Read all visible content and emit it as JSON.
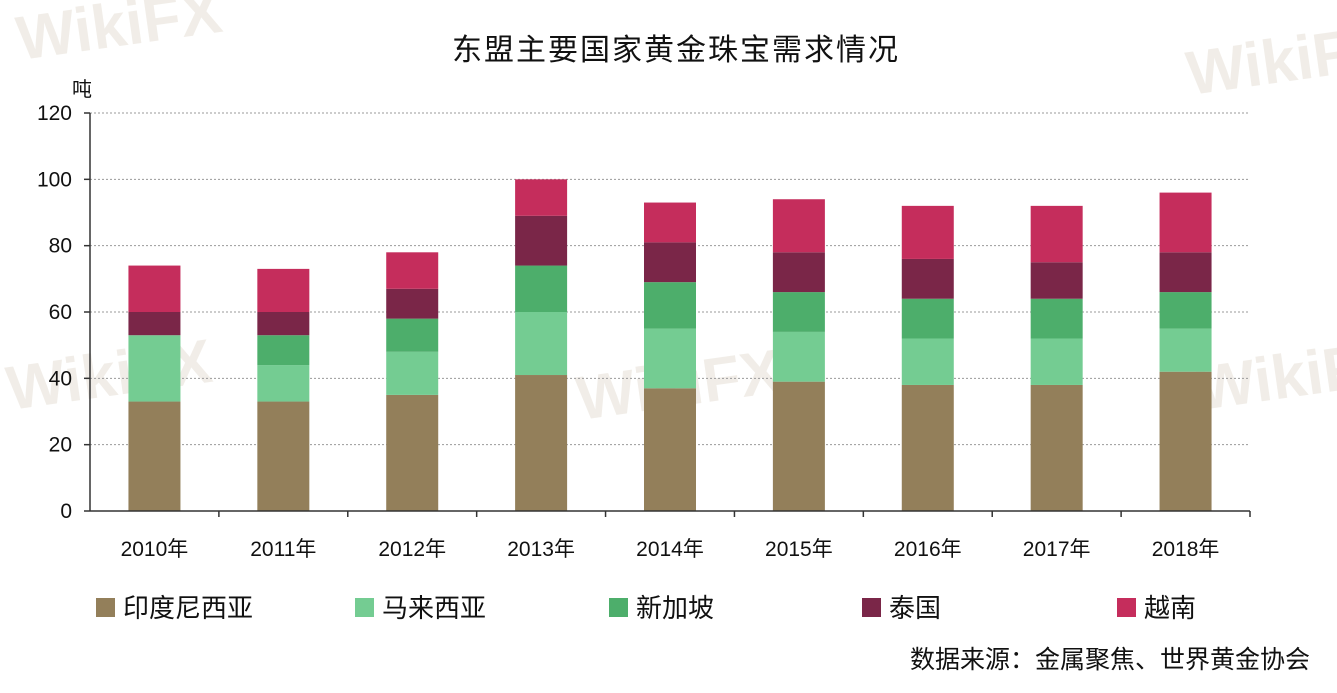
{
  "chart_data": {
    "type": "bar",
    "stacked": true,
    "title": "东盟主要国家黄金珠宝需求情况",
    "ylabel": "吨",
    "xlabel": "",
    "ylim": [
      0,
      120
    ],
    "yticks": [
      0,
      20,
      40,
      60,
      80,
      100,
      120
    ],
    "grid": true,
    "categories": [
      "2010年",
      "2011年",
      "2012年",
      "2013年",
      "2014年",
      "2015年",
      "2016年",
      "2017年",
      "2018年"
    ],
    "series": [
      {
        "name": "印度尼西亚",
        "color": "#937f5a",
        "values": [
          33,
          33,
          35,
          41,
          37,
          39,
          38,
          38,
          42
        ]
      },
      {
        "name": "马来西亚",
        "color": "#74cc92",
        "values": [
          20,
          11,
          13,
          19,
          18,
          15,
          14,
          14,
          13
        ]
      },
      {
        "name": "新加坡",
        "color": "#4dae6b",
        "values": [
          0,
          9,
          10,
          14,
          14,
          12,
          12,
          12,
          11
        ]
      },
      {
        "name": "泰国",
        "color": "#7a2648",
        "values": [
          7,
          7,
          9,
          15,
          12,
          12,
          12,
          11,
          12
        ]
      },
      {
        "name": "越南",
        "color": "#c52d5c",
        "values": [
          14,
          13,
          11,
          11,
          12,
          16,
          16,
          17,
          18
        ]
      }
    ],
    "source": "数据来源：金属聚焦、世界黄金协会"
  },
  "watermark": "WikiFX"
}
